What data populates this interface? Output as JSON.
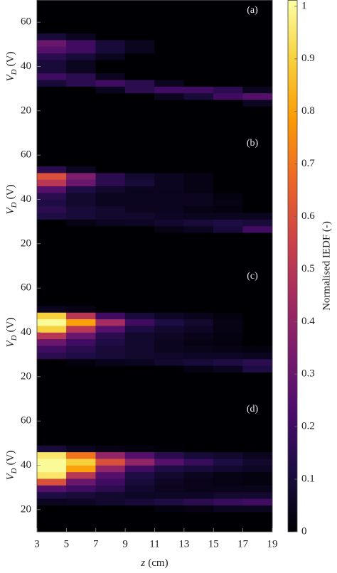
{
  "chart_data": {
    "type": "heatmap",
    "xlabel_parts": [
      "z",
      "(cm)"
    ],
    "ylabel_parts": [
      "V",
      "D",
      "(V)"
    ],
    "xlim": [
      3,
      19
    ],
    "xticks": [
      3,
      5,
      7,
      9,
      11,
      13,
      15,
      17,
      19
    ],
    "ylim": [
      10,
      70
    ],
    "yticks": [
      20,
      40,
      60
    ],
    "xbins": [
      3,
      5,
      7,
      9,
      11,
      13,
      15,
      17,
      19
    ],
    "ybins": [
      10,
      13,
      16,
      19,
      22,
      25,
      28,
      31,
      34,
      37,
      40,
      43,
      46,
      49,
      52,
      55,
      58,
      61,
      64,
      67,
      70
    ],
    "colorbar": {
      "label": "Normalised IEDF (-)",
      "lim": [
        0,
        1.012
      ],
      "ticks": [
        0,
        0.1,
        0.2,
        0.3,
        0.4,
        0.5,
        0.6,
        0.7,
        0.8,
        0.9,
        1
      ],
      "colors": [
        "#000004",
        "#1b0c41",
        "#4a0c6b",
        "#781c6d",
        "#a52c60",
        "#cf4446",
        "#ed6925",
        "#fb9b06",
        "#f7d13d",
        "#fcffa4"
      ]
    },
    "panels": [
      {
        "label": "(a)",
        "values": [
          [
            0,
            0,
            0,
            0,
            0,
            0,
            0,
            0
          ],
          [
            0,
            0,
            0,
            0,
            0,
            0,
            0,
            0
          ],
          [
            0,
            0,
            0,
            0,
            0,
            0,
            0,
            0
          ],
          [
            0,
            0,
            0,
            0,
            0,
            0,
            0,
            0
          ],
          [
            0,
            0,
            0,
            0,
            0,
            0,
            0,
            0.05
          ],
          [
            0,
            0,
            0,
            0,
            0.05,
            0.1,
            0.2,
            0.25
          ],
          [
            0,
            0,
            0.05,
            0.15,
            0.2,
            0.2,
            0.15,
            0.05
          ],
          [
            0.1,
            0.15,
            0.2,
            0.15,
            0.05,
            0,
            0,
            0
          ],
          [
            0.2,
            0.15,
            0.05,
            0,
            0,
            0,
            0,
            0
          ],
          [
            0.1,
            0.05,
            0,
            0,
            0,
            0,
            0,
            0
          ],
          [
            0.1,
            0.05,
            0,
            0,
            0,
            0,
            0,
            0
          ],
          [
            0.15,
            0.1,
            0.05,
            0,
            0,
            0,
            0,
            0
          ],
          [
            0.25,
            0.2,
            0.1,
            0.05,
            0,
            0,
            0,
            0
          ],
          [
            0.3,
            0.2,
            0.1,
            0.05,
            0,
            0,
            0,
            0
          ],
          [
            0.1,
            0.05,
            0,
            0,
            0,
            0,
            0,
            0
          ],
          [
            0,
            0,
            0,
            0,
            0,
            0,
            0,
            0
          ],
          [
            0,
            0,
            0,
            0,
            0,
            0,
            0,
            0
          ],
          [
            0,
            0,
            0,
            0,
            0,
            0,
            0,
            0
          ],
          [
            0,
            0,
            0,
            0,
            0,
            0,
            0,
            0
          ],
          [
            0,
            0,
            0,
            0,
            0,
            0,
            0,
            0
          ]
        ]
      },
      {
        "label": "(b)",
        "values": [
          [
            0,
            0,
            0,
            0,
            0,
            0,
            0,
            0
          ],
          [
            0,
            0,
            0,
            0,
            0,
            0,
            0,
            0
          ],
          [
            0,
            0,
            0,
            0,
            0,
            0,
            0,
            0
          ],
          [
            0,
            0,
            0,
            0,
            0,
            0,
            0,
            0
          ],
          [
            0,
            0,
            0,
            0,
            0,
            0,
            0,
            0
          ],
          [
            0,
            0,
            0,
            0,
            0.03,
            0.05,
            0.1,
            0.2
          ],
          [
            0,
            0.03,
            0.05,
            0.06,
            0.08,
            0.1,
            0.12,
            0.1
          ],
          [
            0.12,
            0.1,
            0.08,
            0.08,
            0.06,
            0.05,
            0.05,
            0.05
          ],
          [
            0.15,
            0.1,
            0.08,
            0.05,
            0.05,
            0.03,
            0.02,
            0
          ],
          [
            0.12,
            0.08,
            0.05,
            0.05,
            0.05,
            0.05,
            0.03,
            0
          ],
          [
            0.15,
            0.08,
            0.05,
            0.05,
            0.05,
            0.05,
            0.02,
            0
          ],
          [
            0.25,
            0.12,
            0.08,
            0.05,
            0.05,
            0.03,
            0,
            0
          ],
          [
            0.5,
            0.3,
            0.15,
            0.1,
            0.05,
            0.03,
            0,
            0
          ],
          [
            0.6,
            0.35,
            0.15,
            0.08,
            0.05,
            0.03,
            0,
            0
          ],
          [
            0.15,
            0.05,
            0,
            0,
            0,
            0,
            0,
            0
          ],
          [
            0,
            0,
            0,
            0,
            0,
            0,
            0,
            0
          ],
          [
            0,
            0,
            0,
            0,
            0,
            0,
            0,
            0
          ],
          [
            0,
            0,
            0,
            0,
            0,
            0,
            0,
            0
          ],
          [
            0,
            0,
            0,
            0,
            0,
            0,
            0,
            0
          ],
          [
            0,
            0,
            0,
            0,
            0,
            0,
            0,
            0
          ]
        ]
      },
      {
        "label": "(c)",
        "values": [
          [
            0,
            0,
            0,
            0,
            0,
            0,
            0,
            0
          ],
          [
            0,
            0,
            0,
            0,
            0,
            0,
            0,
            0
          ],
          [
            0,
            0,
            0,
            0,
            0,
            0,
            0,
            0
          ],
          [
            0,
            0,
            0,
            0,
            0,
            0,
            0,
            0
          ],
          [
            0,
            0,
            0,
            0,
            0,
            0.03,
            0.05,
            0.12
          ],
          [
            0,
            0.02,
            0.04,
            0.05,
            0.08,
            0.1,
            0.12,
            0.15
          ],
          [
            0.15,
            0.12,
            0.1,
            0.08,
            0.07,
            0.06,
            0.06,
            0.05
          ],
          [
            0.2,
            0.15,
            0.1,
            0.08,
            0.05,
            0.04,
            0.03,
            0.02
          ],
          [
            0.3,
            0.2,
            0.12,
            0.08,
            0.05,
            0.03,
            0.02,
            0
          ],
          [
            0.5,
            0.3,
            0.15,
            0.08,
            0.06,
            0.04,
            0.02,
            0
          ],
          [
            0.9,
            0.5,
            0.25,
            0.12,
            0.08,
            0.06,
            0.03,
            0
          ],
          [
            1.0,
            0.8,
            0.45,
            0.2,
            0.12,
            0.08,
            0.03,
            0
          ],
          [
            0.9,
            0.5,
            0.2,
            0.1,
            0.06,
            0.04,
            0.02,
            0
          ],
          [
            0.05,
            0.03,
            0,
            0,
            0,
            0,
            0,
            0
          ],
          [
            0,
            0,
            0,
            0,
            0,
            0,
            0,
            0
          ],
          [
            0,
            0,
            0,
            0,
            0,
            0,
            0,
            0
          ],
          [
            0,
            0,
            0,
            0,
            0,
            0,
            0,
            0
          ],
          [
            0,
            0,
            0,
            0,
            0,
            0,
            0,
            0
          ],
          [
            0,
            0,
            0,
            0,
            0,
            0,
            0,
            0
          ],
          [
            0,
            0,
            0,
            0,
            0,
            0,
            0,
            0
          ]
        ]
      },
      {
        "label": "(d)",
        "values": [
          [
            0,
            0,
            0,
            0,
            0,
            0,
            0,
            0
          ],
          [
            0,
            0,
            0,
            0,
            0,
            0,
            0,
            0
          ],
          [
            0,
            0,
            0,
            0,
            0,
            0,
            0,
            0
          ],
          [
            0,
            0,
            0,
            0,
            0.02,
            0.03,
            0.05,
            0.05
          ],
          [
            0.05,
            0.06,
            0.08,
            0.1,
            0.12,
            0.15,
            0.18,
            0.2
          ],
          [
            0.12,
            0.1,
            0.08,
            0.06,
            0.06,
            0.06,
            0.08,
            0.08
          ],
          [
            0.25,
            0.2,
            0.15,
            0.08,
            0.05,
            0.04,
            0.04,
            0.04
          ],
          [
            0.6,
            0.3,
            0.2,
            0.1,
            0.06,
            0.04,
            0.03,
            0.02
          ],
          [
            0.95,
            0.5,
            0.25,
            0.12,
            0.08,
            0.05,
            0.03,
            0.02
          ],
          [
            1.0,
            0.8,
            0.4,
            0.2,
            0.12,
            0.1,
            0.08,
            0.06
          ],
          [
            1.0,
            0.9,
            0.6,
            0.4,
            0.25,
            0.18,
            0.12,
            0.08
          ],
          [
            0.95,
            0.7,
            0.4,
            0.25,
            0.15,
            0.1,
            0.08,
            0.05
          ],
          [
            0.1,
            0.05,
            0.03,
            0.02,
            0.01,
            0,
            0,
            0
          ],
          [
            0,
            0,
            0,
            0,
            0,
            0,
            0,
            0
          ],
          [
            0,
            0,
            0,
            0,
            0,
            0,
            0,
            0
          ],
          [
            0,
            0,
            0,
            0,
            0,
            0,
            0,
            0
          ],
          [
            0,
            0,
            0,
            0,
            0,
            0,
            0,
            0
          ],
          [
            0,
            0,
            0,
            0,
            0,
            0,
            0,
            0
          ],
          [
            0,
            0,
            0,
            0,
            0,
            0,
            0,
            0
          ],
          [
            0,
            0,
            0,
            0,
            0,
            0,
            0,
            0
          ]
        ]
      }
    ]
  }
}
